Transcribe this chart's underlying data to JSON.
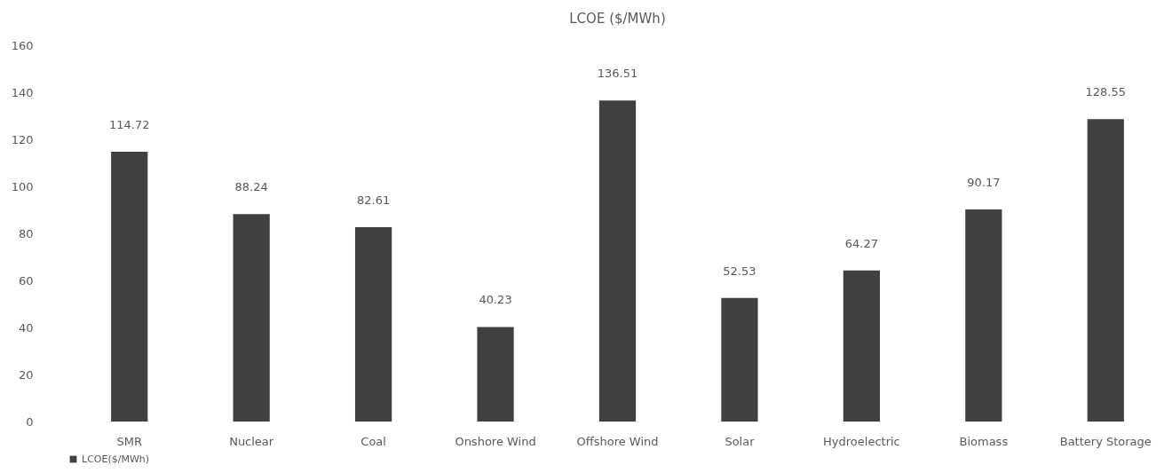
{
  "chart_data": {
    "type": "bar",
    "title": "LCOE ($/MWh)",
    "categories": [
      "SMR",
      "Nuclear",
      "Coal",
      "Onshore Wind",
      "Offshore Wind",
      "Solar",
      "Hydroelectric",
      "Biomass",
      "Battery Storage"
    ],
    "series": [
      {
        "name": "LCOE($/MWh)",
        "color": "#404040",
        "values": [
          114.72,
          88.24,
          82.61,
          40.23,
          136.51,
          52.53,
          64.27,
          90.17,
          128.55
        ]
      }
    ],
    "ylim": [
      0,
      160
    ],
    "yticks": [
      0,
      20,
      40,
      60,
      80,
      100,
      120,
      140,
      160
    ],
    "data_labels": true,
    "legend": "bottom"
  }
}
